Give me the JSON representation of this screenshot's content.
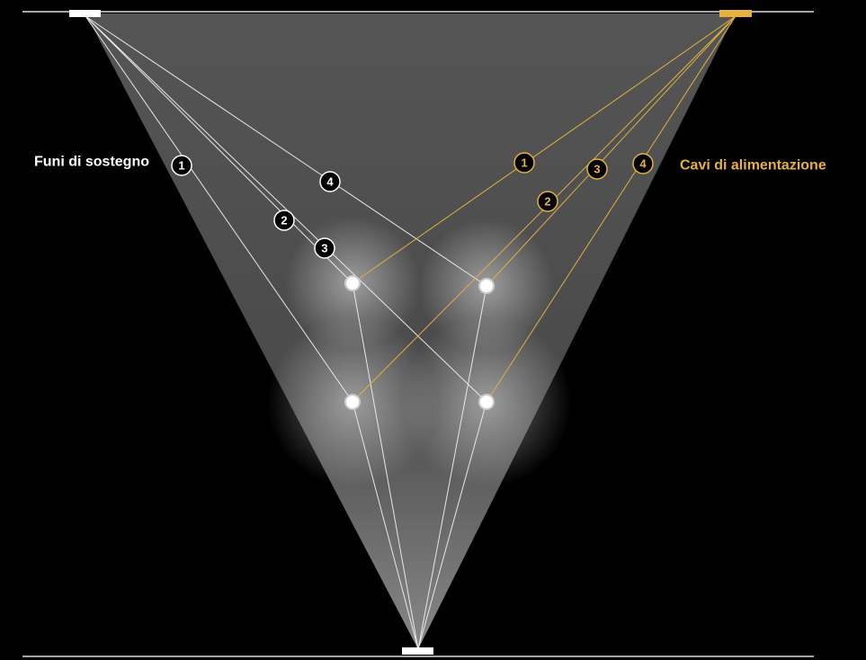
{
  "titles": {
    "support": "Funi di sostegno",
    "power": "Cavi di alimentazione"
  },
  "support_cables": [
    {
      "label": "1"
    },
    {
      "label": "2"
    },
    {
      "label": "3"
    },
    {
      "label": "4"
    }
  ],
  "power_cables": [
    {
      "label": "1"
    },
    {
      "label": "2"
    },
    {
      "label": "3"
    },
    {
      "label": "4"
    }
  ]
}
